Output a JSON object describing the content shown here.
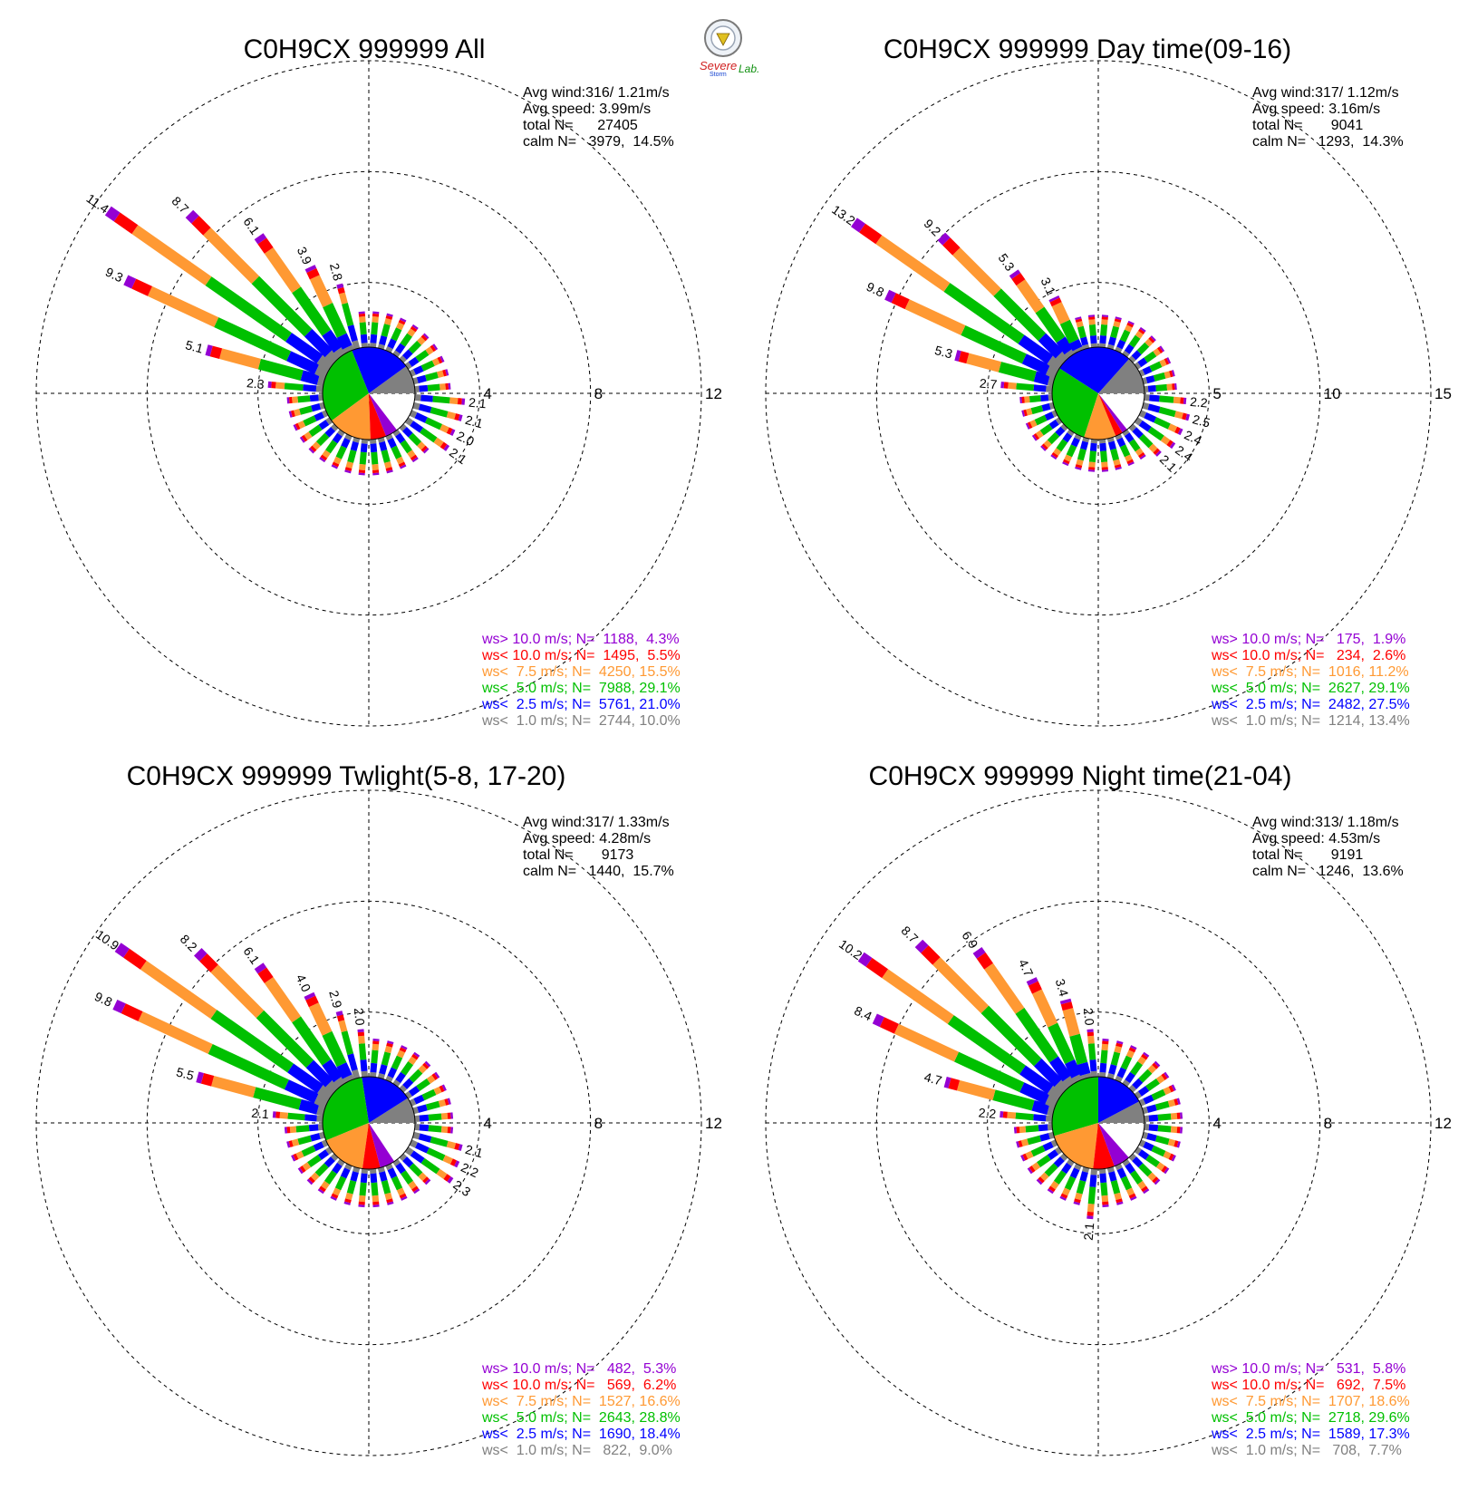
{
  "colors": {
    "ws_gt_10": "#9400d3",
    "ws_lt_10": "#ff0000",
    "ws_lt_7_5": "#ff9933",
    "ws_lt_5": "#00c000",
    "ws_lt_2_5": "#0000ff",
    "ws_lt_1": "#808080",
    "grid": "#000000",
    "text": "#000000"
  },
  "logo": {
    "text_left": "Severe",
    "text_sub": "Storm",
    "text_right": "Lab."
  },
  "legend_rows": [
    {
      "key": "ws_gt_10",
      "label": "ws> 10.0 m/s; N="
    },
    {
      "key": "ws_lt_10",
      "label": "ws< 10.0 m/s; N="
    },
    {
      "key": "ws_lt_7_5",
      "label": "ws<  7.5 m/s; N="
    },
    {
      "key": "ws_lt_5",
      "label": "ws<  5.0 m/s; N="
    },
    {
      "key": "ws_lt_2_5",
      "label": "ws<  2.5 m/s; N="
    },
    {
      "key": "ws_lt_1",
      "label": "ws<  1.0 m/s; N="
    }
  ],
  "chart_data": [
    {
      "type": "wind-rose",
      "title": "C0H9CX 999999 All",
      "avg_wind": "Avg wind:316/ 1.21m/s",
      "avg_speed": "Avg speed: 3.99m/s",
      "total": "total N=      27405",
      "calm": "calm N=   3979,  14.5%",
      "rings": [
        4,
        8,
        12
      ],
      "rmax": 12,
      "legend": [
        {
          "n": "1188",
          "pct": "4.3%"
        },
        {
          "n": "1495",
          "pct": "5.5%"
        },
        {
          "n": "4250",
          "pct": "15.5%"
        },
        {
          "n": "7988",
          "pct": "29.1%"
        },
        {
          "n": "5761",
          "pct": "21.0%"
        },
        {
          "n": "2744",
          "pct": "10.0%"
        }
      ],
      "pie": [
        10.0,
        21.0,
        29.1,
        15.5,
        5.5,
        4.3
      ],
      "petals": [
        {
          "dir": 305,
          "total": 11.4,
          "label": "11.4"
        },
        {
          "dir": 295,
          "total": 9.3,
          "label": "9.3"
        },
        {
          "dir": 315,
          "total": 8.7,
          "label": "8.7"
        },
        {
          "dir": 325,
          "total": 6.1,
          "label": "6.1"
        },
        {
          "dir": 285,
          "total": 5.1,
          "label": "5.1"
        },
        {
          "dir": 335,
          "total": 3.9,
          "label": "3.9"
        },
        {
          "dir": 345,
          "total": 2.8,
          "label": "2.8"
        },
        {
          "dir": 275,
          "total": 2.3,
          "label": "2.3"
        },
        {
          "dir": 95,
          "total": 2.1,
          "label": "2.1"
        },
        {
          "dir": 105,
          "total": 2.1,
          "label": "2.1"
        },
        {
          "dir": 115,
          "total": 2.0,
          "label": "2.0"
        },
        {
          "dir": 125,
          "total": 2.1,
          "label": "2.1"
        }
      ],
      "minor_value": 1.5
    },
    {
      "type": "wind-rose",
      "title": "C0H9CX 999999 Day time(09-16)",
      "avg_wind": "Avg wind:317/ 1.12m/s",
      "avg_speed": "Avg speed: 3.16m/s",
      "total": "total N=       9041",
      "calm": "calm N=   1293,  14.3%",
      "rings": [
        5,
        10,
        15
      ],
      "rmax": 15,
      "legend": [
        {
          "n": "175",
          "pct": "1.9%"
        },
        {
          "n": "234",
          "pct": "2.6%"
        },
        {
          "n": "1016",
          "pct": "11.2%"
        },
        {
          "n": "2627",
          "pct": "29.1%"
        },
        {
          "n": "2482",
          "pct": "27.5%"
        },
        {
          "n": "1214",
          "pct": "13.4%"
        }
      ],
      "pie": [
        13.4,
        27.5,
        29.1,
        11.2,
        2.6,
        1.9
      ],
      "petals": [
        {
          "dir": 305,
          "total": 13.2,
          "label": "13.2"
        },
        {
          "dir": 295,
          "total": 9.8,
          "label": "9.8"
        },
        {
          "dir": 315,
          "total": 9.2,
          "label": "9.2"
        },
        {
          "dir": 285,
          "total": 5.3,
          "label": "5.3"
        },
        {
          "dir": 325,
          "total": 5.3,
          "label": "5.3"
        },
        {
          "dir": 335,
          "total": 3.1,
          "label": "3.1"
        },
        {
          "dir": 275,
          "total": 2.7,
          "label": "2.7"
        },
        {
          "dir": 95,
          "total": 2.2,
          "label": "2.2"
        },
        {
          "dir": 105,
          "total": 2.5,
          "label": "2.5"
        },
        {
          "dir": 115,
          "total": 2.4,
          "label": "2.4"
        },
        {
          "dir": 125,
          "total": 2.4,
          "label": "2.4"
        },
        {
          "dir": 135,
          "total": 2.1,
          "label": "2.1"
        }
      ],
      "minor_value": 1.7
    },
    {
      "type": "wind-rose",
      "title": "C0H9CX 999999 Twlight(5-8, 17-20)",
      "avg_wind": "Avg wind:317/ 1.33m/s",
      "avg_speed": "Avg speed: 4.28m/s",
      "total": "total N=       9173",
      "calm": "calm N=   1440,  15.7%",
      "rings": [
        4,
        8,
        12
      ],
      "rmax": 12,
      "legend": [
        {
          "n": "482",
          "pct": "5.3%"
        },
        {
          "n": "569",
          "pct": "6.2%"
        },
        {
          "n": "1527",
          "pct": "16.6%"
        },
        {
          "n": "2643",
          "pct": "28.8%"
        },
        {
          "n": "1690",
          "pct": "18.4%"
        },
        {
          "n": "822",
          "pct": "9.0%"
        }
      ],
      "pie": [
        9.0,
        18.4,
        28.8,
        16.6,
        6.2,
        5.3
      ],
      "petals": [
        {
          "dir": 305,
          "total": 10.9,
          "label": "10.9"
        },
        {
          "dir": 295,
          "total": 9.8,
          "label": "9.8"
        },
        {
          "dir": 315,
          "total": 8.2,
          "label": "8.2"
        },
        {
          "dir": 325,
          "total": 6.1,
          "label": "6.1"
        },
        {
          "dir": 285,
          "total": 5.5,
          "label": "5.5"
        },
        {
          "dir": 335,
          "total": 4.0,
          "label": "4.0"
        },
        {
          "dir": 345,
          "total": 2.9,
          "label": "2.9"
        },
        {
          "dir": 355,
          "total": 2.0,
          "label": "2.0"
        },
        {
          "dir": 275,
          "total": 2.1,
          "label": "2.1"
        },
        {
          "dir": 105,
          "total": 2.1,
          "label": "2.1"
        },
        {
          "dir": 115,
          "total": 2.2,
          "label": "2.2"
        },
        {
          "dir": 125,
          "total": 2.3,
          "label": "2.3"
        }
      ],
      "minor_value": 1.6
    },
    {
      "type": "wind-rose",
      "title": "C0H9CX 999999 Night time(21-04)",
      "avg_wind": "Avg wind:313/ 1.18m/s",
      "avg_speed": "Avg speed: 4.53m/s",
      "total": "total N=       9191",
      "calm": "calm N=   1246,  13.6%",
      "rings": [
        4,
        8,
        12
      ],
      "rmax": 12,
      "legend": [
        {
          "n": "531",
          "pct": "5.8%"
        },
        {
          "n": "692",
          "pct": "7.5%"
        },
        {
          "n": "1707",
          "pct": "18.6%"
        },
        {
          "n": "2718",
          "pct": "29.6%"
        },
        {
          "n": "1589",
          "pct": "17.3%"
        },
        {
          "n": "708",
          "pct": "7.7%"
        }
      ],
      "pie": [
        7.7,
        17.3,
        29.6,
        18.6,
        7.5,
        5.8
      ],
      "petals": [
        {
          "dir": 305,
          "total": 10.2,
          "label": "10.2"
        },
        {
          "dir": 295,
          "total": 8.4,
          "label": "8.4"
        },
        {
          "dir": 315,
          "total": 8.7,
          "label": "8.7"
        },
        {
          "dir": 325,
          "total": 6.9,
          "label": "6.9"
        },
        {
          "dir": 285,
          "total": 4.7,
          "label": "4.7"
        },
        {
          "dir": 335,
          "total": 4.7,
          "label": "4.7"
        },
        {
          "dir": 345,
          "total": 3.4,
          "label": "3.4"
        },
        {
          "dir": 355,
          "total": 2.0,
          "label": "2.0"
        },
        {
          "dir": 275,
          "total": 2.2,
          "label": "2.2"
        },
        {
          "dir": 185,
          "total": 2.1,
          "label": "2.1"
        }
      ],
      "minor_value": 1.6
    }
  ]
}
